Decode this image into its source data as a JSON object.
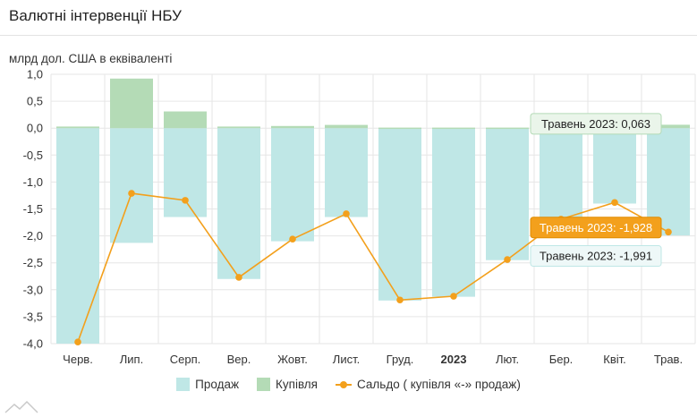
{
  "header": {
    "title": "Валютні інтервенції НБУ"
  },
  "units_label": "млрд дол. США в еквіваленті",
  "colors": {
    "sales": "#bfe7e6",
    "purchases": "#b4dbb6",
    "balance": "#f3a01c",
    "grid": "#e6e6e6"
  },
  "legend": {
    "sales": "Продаж",
    "purchases": "Купівля",
    "balance": "Сальдо ( купівля «-» продаж)"
  },
  "tooltips": {
    "purchases": "Травень 2023: 0,063",
    "balance": "Травень 2023: -1,928",
    "sales": "Травень 2023: -1,991"
  },
  "chart_data": {
    "type": "bar",
    "categories": [
      "Черв.",
      "Лип.",
      "Серп.",
      "Вер.",
      "Жовт.",
      "Лист.",
      "Груд.",
      "2023",
      "Лют.",
      "Бер.",
      "Квіт.",
      "Трав."
    ],
    "ylim": [
      -4.0,
      1.0
    ],
    "yticks": [
      "1,0",
      "0,5",
      "0,0",
      "-0,5",
      "-1,0",
      "-1,5",
      "-2,0",
      "-2,5",
      "-3,0",
      "-3,5",
      "-4,0"
    ],
    "ylabel": "млрд дол. США в еквіваленті",
    "grid": true,
    "legend_position": "bottom",
    "series": [
      {
        "name": "Продаж",
        "type": "bar",
        "values": [
          -4.0,
          -2.13,
          -1.65,
          -2.8,
          -2.1,
          -1.65,
          -3.2,
          -3.13,
          -2.45,
          -1.7,
          -1.4,
          -1.991
        ]
      },
      {
        "name": "Купівля",
        "type": "bar",
        "values": [
          0.03,
          0.92,
          0.31,
          0.03,
          0.04,
          0.06,
          0.01,
          0.01,
          0.01,
          0.01,
          0.02,
          0.063
        ]
      },
      {
        "name": "Сальдо ( купівля «-» продаж)",
        "type": "line",
        "values": [
          -3.97,
          -1.21,
          -1.34,
          -2.77,
          -2.06,
          -1.59,
          -3.19,
          -3.12,
          -2.44,
          -1.69,
          -1.38,
          -1.928
        ]
      }
    ]
  }
}
